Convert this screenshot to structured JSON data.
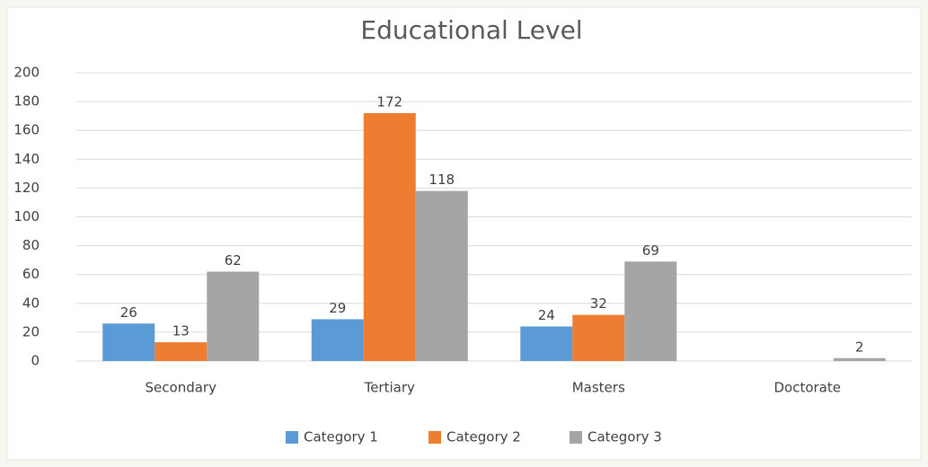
{
  "chart_data": {
    "type": "bar",
    "title": "Educational Level",
    "categories": [
      "Secondary",
      "Tertiary",
      "Masters",
      "Doctorate"
    ],
    "series": [
      {
        "name": "Category 1",
        "color": "#5b9bd5",
        "values": [
          26,
          29,
          24,
          null
        ]
      },
      {
        "name": "Category 2",
        "color": "#ed7d31",
        "values": [
          13,
          172,
          32,
          null
        ]
      },
      {
        "name": "Category 3",
        "color": "#a5a5a5",
        "values": [
          62,
          118,
          69,
          2
        ]
      }
    ],
    "ylim": [
      0,
      200
    ],
    "yticks": [
      0,
      20,
      40,
      60,
      80,
      100,
      120,
      140,
      160,
      180,
      200
    ],
    "grid": true,
    "legend": "bottom"
  }
}
